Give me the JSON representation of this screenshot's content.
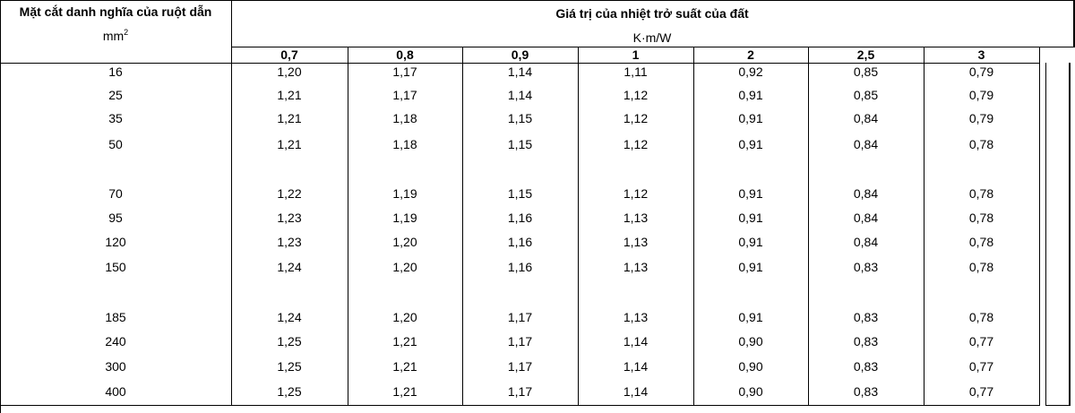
{
  "table": {
    "row_header": "Mặt cắt danh nghĩa của ruột dẫn",
    "row_unit_base": "mm",
    "row_unit_exp": "2",
    "group_header": "Giá trị của nhiệt trở suất của đất",
    "group_unit": "K·m/W",
    "columns": [
      "0,7",
      "0,8",
      "0,9",
      "1",
      "2",
      "2,5",
      "3"
    ],
    "rows": [
      {
        "size": "16",
        "values": [
          "1,20",
          "1,17",
          "1,14",
          "1,11",
          "0,92",
          "0,85",
          "0,79"
        ]
      },
      {
        "size": "25",
        "values": [
          "1,21",
          "1,17",
          "1,14",
          "1,12",
          "0,91",
          "0,85",
          "0,79"
        ]
      },
      {
        "size": "35",
        "values": [
          "1,21",
          "1,18",
          "1,15",
          "1,12",
          "0,91",
          "0,84",
          "0,79"
        ]
      },
      {
        "size": "50",
        "values": [
          "1,21",
          "1,18",
          "1,15",
          "1,12",
          "0,91",
          "0,84",
          "0,78"
        ]
      },
      {
        "size": "70",
        "values": [
          "1,22",
          "1,19",
          "1,15",
          "1,12",
          "0,91",
          "0,84",
          "0,78"
        ]
      },
      {
        "size": "95",
        "values": [
          "1,23",
          "1,19",
          "1,16",
          "1,13",
          "0,91",
          "0,84",
          "0,78"
        ]
      },
      {
        "size": "120",
        "values": [
          "1,23",
          "1,20",
          "1,16",
          "1,13",
          "0,91",
          "0,84",
          "0,78"
        ]
      },
      {
        "size": "150",
        "values": [
          "1,24",
          "1,20",
          "1,16",
          "1,13",
          "0,91",
          "0,83",
          "0,78"
        ]
      },
      {
        "size": "185",
        "values": [
          "1,24",
          "1,20",
          "1,17",
          "1,13",
          "0,91",
          "0,83",
          "0,78"
        ]
      },
      {
        "size": "240",
        "values": [
          "1,25",
          "1,21",
          "1,17",
          "1,14",
          "0,90",
          "0,83",
          "0,77"
        ]
      },
      {
        "size": "300",
        "values": [
          "1,25",
          "1,21",
          "1,17",
          "1,14",
          "0,90",
          "0,83",
          "0,77"
        ]
      },
      {
        "size": "400",
        "values": [
          "1,25",
          "1,21",
          "1,17",
          "1,14",
          "0,90",
          "0,83",
          "0,77"
        ]
      }
    ]
  }
}
